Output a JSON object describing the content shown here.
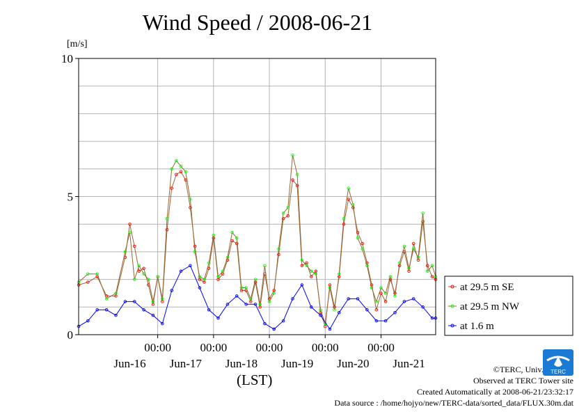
{
  "chart_data": {
    "type": "line",
    "title": "Wind Speed / 2008-06-21",
    "ylabel": "[m/s]",
    "xlabel": "(LST)",
    "ylim": [
      0,
      10
    ],
    "y_ticks": [
      {
        "value": 0,
        "label": "0"
      },
      {
        "value": 5,
        "label": "5"
      },
      {
        "value": 10,
        "label": "10"
      }
    ],
    "xlim": [
      "2008-06-15T14:00",
      "2008-06-21T23:30"
    ],
    "x_ticks": [
      {
        "x": "2008-06-17T00:00",
        "time": "00:00"
      },
      {
        "x": "2008-06-18T00:00",
        "time": "00:00"
      },
      {
        "x": "2008-06-19T00:00",
        "time": "00:00"
      },
      {
        "x": "2008-06-20T00:00",
        "time": "00:00"
      },
      {
        "x": "2008-06-21T00:00",
        "time": "00:00"
      }
    ],
    "date_labels": [
      {
        "x": "2008-06-16T12:00",
        "label": "Jun-16"
      },
      {
        "x": "2008-06-17T12:00",
        "label": "Jun-17"
      },
      {
        "x": "2008-06-18T12:00",
        "label": "Jun-18"
      },
      {
        "x": "2008-06-19T12:00",
        "label": "Jun-19"
      },
      {
        "x": "2008-06-20T12:00",
        "label": "Jun-20"
      },
      {
        "x": "2008-06-21T12:00",
        "label": "Jun-21"
      }
    ],
    "grid": true,
    "legend_position": "right",
    "series": [
      {
        "name": "at 29.5 m SE",
        "color": "#ff0000",
        "line_color": "#996633",
        "x": [
          "2008-06-15T14:00",
          "2008-06-15T18:00",
          "2008-06-15T22:00",
          "2008-06-16T02:00",
          "2008-06-16T06:00",
          "2008-06-16T10:00",
          "2008-06-16T12:00",
          "2008-06-16T14:00",
          "2008-06-16T16:00",
          "2008-06-16T18:00",
          "2008-06-16T20:00",
          "2008-06-16T22:00",
          "2008-06-17T00:00",
          "2008-06-17T02:00",
          "2008-06-17T04:00",
          "2008-06-17T06:00",
          "2008-06-17T08:00",
          "2008-06-17T10:00",
          "2008-06-17T12:00",
          "2008-06-17T14:00",
          "2008-06-17T16:00",
          "2008-06-17T18:00",
          "2008-06-17T20:00",
          "2008-06-17T22:00",
          "2008-06-18T00:00",
          "2008-06-18T02:00",
          "2008-06-18T04:00",
          "2008-06-18T06:00",
          "2008-06-18T08:00",
          "2008-06-18T10:00",
          "2008-06-18T12:00",
          "2008-06-18T14:00",
          "2008-06-18T16:00",
          "2008-06-18T18:00",
          "2008-06-18T20:00",
          "2008-06-18T22:00",
          "2008-06-19T00:00",
          "2008-06-19T02:00",
          "2008-06-19T04:00",
          "2008-06-19T06:00",
          "2008-06-19T08:00",
          "2008-06-19T10:00",
          "2008-06-19T12:00",
          "2008-06-19T14:00",
          "2008-06-19T16:00",
          "2008-06-19T18:00",
          "2008-06-19T20:00",
          "2008-06-19T22:00",
          "2008-06-20T00:00",
          "2008-06-20T02:00",
          "2008-06-20T04:00",
          "2008-06-20T06:00",
          "2008-06-20T08:00",
          "2008-06-20T10:00",
          "2008-06-20T12:00",
          "2008-06-20T14:00",
          "2008-06-20T16:00",
          "2008-06-20T18:00",
          "2008-06-20T20:00",
          "2008-06-20T22:00",
          "2008-06-21T00:00",
          "2008-06-21T02:00",
          "2008-06-21T04:00",
          "2008-06-21T06:00",
          "2008-06-21T08:00",
          "2008-06-21T10:00",
          "2008-06-21T12:00",
          "2008-06-21T14:00",
          "2008-06-21T16:00",
          "2008-06-21T18:00",
          "2008-06-21T20:00",
          "2008-06-21T22:00",
          "2008-06-21T23:30"
        ],
        "y": [
          1.8,
          1.9,
          2.1,
          1.4,
          1.4,
          2.8,
          4.0,
          3.2,
          2.3,
          2.4,
          1.8,
          1.1,
          2.1,
          1.2,
          3.8,
          5.3,
          5.8,
          5.9,
          5.6,
          4.6,
          3.2,
          2.0,
          1.9,
          2.4,
          3.5,
          2.0,
          2.2,
          2.7,
          3.4,
          3.3,
          1.6,
          1.6,
          1.2,
          1.9,
          1.0,
          2.2,
          1.3,
          1.6,
          2.9,
          4.2,
          4.3,
          5.6,
          5.4,
          2.5,
          2.6,
          2.1,
          2.3,
          0.8,
          0.3,
          1.8,
          1.0,
          2.1,
          4.0,
          4.9,
          4.6,
          3.7,
          3.3,
          2.6,
          1.8,
          0.9,
          1.5,
          1.2,
          2.0,
          1.5,
          2.5,
          3.0,
          2.3,
          3.3,
          2.7,
          4.1,
          2.5,
          2.1,
          2.0
        ]
      },
      {
        "name": "at 29.5 m NW",
        "color": "#00ff00",
        "line_color": "#996633",
        "x": [
          "2008-06-15T14:00",
          "2008-06-15T18:00",
          "2008-06-15T22:00",
          "2008-06-16T02:00",
          "2008-06-16T06:00",
          "2008-06-16T10:00",
          "2008-06-16T12:00",
          "2008-06-16T14:00",
          "2008-06-16T16:00",
          "2008-06-16T18:00",
          "2008-06-16T20:00",
          "2008-06-16T22:00",
          "2008-06-17T00:00",
          "2008-06-17T02:00",
          "2008-06-17T04:00",
          "2008-06-17T06:00",
          "2008-06-17T08:00",
          "2008-06-17T10:00",
          "2008-06-17T12:00",
          "2008-06-17T14:00",
          "2008-06-17T16:00",
          "2008-06-17T18:00",
          "2008-06-17T20:00",
          "2008-06-17T22:00",
          "2008-06-18T00:00",
          "2008-06-18T02:00",
          "2008-06-18T04:00",
          "2008-06-18T06:00",
          "2008-06-18T08:00",
          "2008-06-18T10:00",
          "2008-06-18T12:00",
          "2008-06-18T14:00",
          "2008-06-18T16:00",
          "2008-06-18T18:00",
          "2008-06-18T20:00",
          "2008-06-18T22:00",
          "2008-06-19T00:00",
          "2008-06-19T02:00",
          "2008-06-19T04:00",
          "2008-06-19T06:00",
          "2008-06-19T08:00",
          "2008-06-19T10:00",
          "2008-06-19T12:00",
          "2008-06-19T14:00",
          "2008-06-19T16:00",
          "2008-06-19T18:00",
          "2008-06-19T20:00",
          "2008-06-19T22:00",
          "2008-06-20T00:00",
          "2008-06-20T02:00",
          "2008-06-20T04:00",
          "2008-06-20T06:00",
          "2008-06-20T08:00",
          "2008-06-20T10:00",
          "2008-06-20T12:00",
          "2008-06-20T14:00",
          "2008-06-20T16:00",
          "2008-06-20T18:00",
          "2008-06-20T20:00",
          "2008-06-20T22:00",
          "2008-06-21T00:00",
          "2008-06-21T02:00",
          "2008-06-21T04:00",
          "2008-06-21T06:00",
          "2008-06-21T08:00",
          "2008-06-21T10:00",
          "2008-06-21T12:00",
          "2008-06-21T14:00",
          "2008-06-21T16:00",
          "2008-06-21T18:00",
          "2008-06-21T20:00",
          "2008-06-21T22:00",
          "2008-06-21T23:30"
        ],
        "y": [
          1.9,
          2.2,
          2.2,
          1.3,
          1.5,
          3.0,
          3.7,
          2.0,
          2.5,
          2.2,
          2.0,
          1.2,
          2.1,
          1.3,
          4.2,
          6.0,
          6.3,
          6.1,
          5.9,
          4.9,
          3.0,
          2.1,
          2.0,
          2.6,
          3.6,
          2.1,
          2.3,
          2.8,
          3.7,
          3.5,
          1.7,
          1.7,
          1.3,
          2.0,
          1.1,
          2.5,
          1.2,
          1.5,
          3.1,
          4.4,
          4.6,
          6.5,
          5.8,
          2.7,
          2.5,
          2.3,
          2.2,
          0.9,
          0.4,
          1.7,
          0.9,
          2.2,
          4.2,
          5.3,
          4.7,
          3.5,
          3.1,
          2.5,
          1.7,
          1.2,
          1.7,
          1.5,
          2.1,
          1.4,
          2.6,
          3.2,
          2.4,
          3.1,
          2.8,
          4.4,
          2.3,
          2.5,
          2.1
        ]
      },
      {
        "name": "at 1.6 m",
        "color": "#0000ff",
        "line_color": "#0000ff",
        "x": [
          "2008-06-15T14:00",
          "2008-06-15T18:00",
          "2008-06-15T22:00",
          "2008-06-16T02:00",
          "2008-06-16T06:00",
          "2008-06-16T10:00",
          "2008-06-16T14:00",
          "2008-06-16T18:00",
          "2008-06-16T22:00",
          "2008-06-17T02:00",
          "2008-06-17T06:00",
          "2008-06-17T10:00",
          "2008-06-17T14:00",
          "2008-06-17T18:00",
          "2008-06-17T22:00",
          "2008-06-18T02:00",
          "2008-06-18T06:00",
          "2008-06-18T10:00",
          "2008-06-18T14:00",
          "2008-06-18T18:00",
          "2008-06-18T22:00",
          "2008-06-19T02:00",
          "2008-06-19T06:00",
          "2008-06-19T10:00",
          "2008-06-19T14:00",
          "2008-06-19T18:00",
          "2008-06-19T22:00",
          "2008-06-20T02:00",
          "2008-06-20T06:00",
          "2008-06-20T10:00",
          "2008-06-20T14:00",
          "2008-06-20T18:00",
          "2008-06-20T22:00",
          "2008-06-21T02:00",
          "2008-06-21T06:00",
          "2008-06-21T10:00",
          "2008-06-21T14:00",
          "2008-06-21T18:00",
          "2008-06-21T22:00",
          "2008-06-21T23:30"
        ],
        "y": [
          0.3,
          0.5,
          0.9,
          0.9,
          0.7,
          1.2,
          1.2,
          0.9,
          0.7,
          0.4,
          1.6,
          2.3,
          2.5,
          1.7,
          0.9,
          0.6,
          1.1,
          1.4,
          1.1,
          1.1,
          0.4,
          0.2,
          0.5,
          1.3,
          1.8,
          1.0,
          0.7,
          0.2,
          0.8,
          1.3,
          1.3,
          0.9,
          0.5,
          0.5,
          0.8,
          1.2,
          1.3,
          1.0,
          0.6,
          0.6
        ]
      }
    ]
  },
  "footer": {
    "copyright": "©TERC, Univ. Tsukuba",
    "observed": "Observed at TERC Tower site",
    "created": "Created Automatically at 2008-06-21/23:32:17",
    "source": "Data source : /home/hojyo/new/TERC-data/sorted_data/FLUX.30m.dat"
  },
  "logo": {
    "text": "TERC",
    "color": "#1a7ad4"
  }
}
